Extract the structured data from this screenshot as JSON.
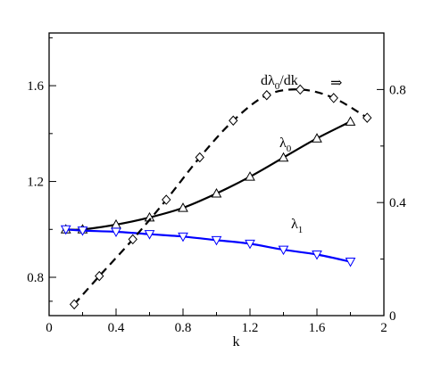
{
  "chart_data": {
    "type": "line",
    "xlabel": "k",
    "xlim": [
      0,
      2
    ],
    "ylim_left": [
      0.64,
      1.82
    ],
    "ylim_right": [
      0,
      1.0
    ],
    "xticks": [
      "0",
      "0.4",
      "0.8",
      "1.2",
      "1.6",
      "2"
    ],
    "xtick_values": [
      0,
      0.4,
      0.8,
      1.2,
      1.6,
      2.0
    ],
    "yticks_left": [
      "0.8",
      "1.2",
      "1.6"
    ],
    "ytick_values_left": [
      0.8,
      1.2,
      1.6
    ],
    "yticks_right": [
      "0",
      "0.4",
      "0.8"
    ],
    "ytick_values_right": [
      0,
      0.4,
      0.8
    ],
    "arrow_symbol": "⇒",
    "grid": false,
    "series": [
      {
        "name": "λ0",
        "axis": "left",
        "color": "#000000",
        "linestyle": "solid",
        "marker": "triangle-up",
        "x": [
          0.1,
          0.2,
          0.4,
          0.6,
          0.8,
          1.0,
          1.2,
          1.4,
          1.6,
          1.8
        ],
        "y": [
          1.0,
          1.0,
          1.02,
          1.05,
          1.09,
          1.15,
          1.22,
          1.3,
          1.38,
          1.45
        ]
      },
      {
        "name": "λ1",
        "axis": "left",
        "color": "#0000ff",
        "linestyle": "solid",
        "marker": "triangle-down",
        "x": [
          0.1,
          0.2,
          0.4,
          0.6,
          0.8,
          1.0,
          1.2,
          1.4,
          1.6,
          1.8
        ],
        "y": [
          1.0,
          0.995,
          0.99,
          0.98,
          0.97,
          0.955,
          0.94,
          0.915,
          0.895,
          0.865
        ]
      },
      {
        "name": "dλ0/dk",
        "axis": "right",
        "color": "#000000",
        "linestyle": "dashed",
        "marker": "diamond",
        "x": [
          0.15,
          0.3,
          0.5,
          0.7,
          0.9,
          1.1,
          1.3,
          1.5,
          1.7,
          1.9
        ],
        "y": [
          0.04,
          0.14,
          0.27,
          0.41,
          0.56,
          0.69,
          0.78,
          0.8,
          0.77,
          0.7
        ]
      }
    ]
  }
}
